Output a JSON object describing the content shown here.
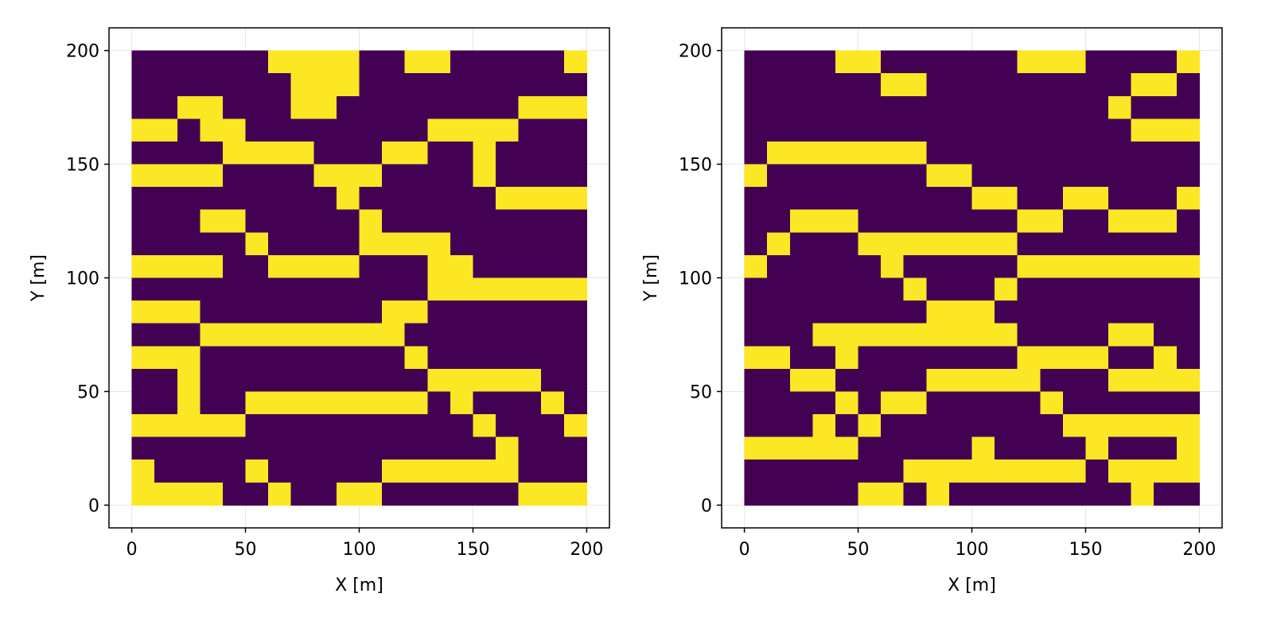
{
  "chart_data": [
    {
      "type": "heatmap",
      "x_label": "X [m]",
      "y_label": "Y [m]",
      "xlim": [
        -10,
        210
      ],
      "ylim": [
        -10,
        210
      ],
      "xticks": [
        0,
        50,
        100,
        150,
        200
      ],
      "yticks": [
        0,
        50,
        100,
        150,
        200
      ],
      "data_extent": [
        0,
        200
      ],
      "grid": true,
      "colors": [
        "#440154",
        "#fde725"
      ],
      "z": [
        [
          0,
          0,
          0,
          0,
          0,
          0,
          1,
          1,
          1,
          1,
          0,
          0,
          1,
          1,
          0,
          0,
          0,
          0,
          0,
          1
        ],
        [
          0,
          0,
          0,
          0,
          0,
          0,
          0,
          1,
          1,
          1,
          0,
          0,
          0,
          0,
          0,
          0,
          0,
          0,
          0,
          0
        ],
        [
          0,
          0,
          1,
          1,
          0,
          0,
          0,
          1,
          1,
          0,
          0,
          0,
          0,
          0,
          0,
          0,
          0,
          1,
          1,
          1
        ],
        [
          1,
          1,
          0,
          1,
          1,
          0,
          0,
          0,
          0,
          0,
          0,
          0,
          0,
          1,
          1,
          1,
          1,
          0,
          0,
          0
        ],
        [
          0,
          0,
          0,
          0,
          1,
          1,
          1,
          1,
          0,
          0,
          0,
          1,
          1,
          0,
          0,
          1,
          0,
          0,
          0,
          0
        ],
        [
          1,
          1,
          1,
          1,
          0,
          0,
          0,
          0,
          1,
          1,
          1,
          0,
          0,
          0,
          0,
          1,
          0,
          0,
          0,
          0
        ],
        [
          0,
          0,
          0,
          0,
          0,
          0,
          0,
          0,
          0,
          1,
          0,
          0,
          0,
          0,
          0,
          0,
          1,
          1,
          1,
          1
        ],
        [
          0,
          0,
          0,
          1,
          1,
          0,
          0,
          0,
          0,
          0,
          1,
          0,
          0,
          0,
          0,
          0,
          0,
          0,
          0,
          0
        ],
        [
          0,
          0,
          0,
          0,
          0,
          1,
          0,
          0,
          0,
          0,
          1,
          1,
          1,
          1,
          0,
          0,
          0,
          0,
          0,
          0
        ],
        [
          1,
          1,
          1,
          1,
          0,
          0,
          1,
          1,
          1,
          1,
          0,
          0,
          0,
          1,
          1,
          0,
          0,
          0,
          0,
          0
        ],
        [
          0,
          0,
          0,
          0,
          0,
          0,
          0,
          0,
          0,
          0,
          0,
          0,
          0,
          1,
          1,
          1,
          1,
          1,
          1,
          1
        ],
        [
          1,
          1,
          1,
          0,
          0,
          0,
          0,
          0,
          0,
          0,
          0,
          1,
          1,
          0,
          0,
          0,
          0,
          0,
          0,
          0
        ],
        [
          0,
          0,
          0,
          1,
          1,
          1,
          1,
          1,
          1,
          1,
          1,
          1,
          0,
          0,
          0,
          0,
          0,
          0,
          0,
          0
        ],
        [
          1,
          1,
          1,
          0,
          0,
          0,
          0,
          0,
          0,
          0,
          0,
          0,
          1,
          0,
          0,
          0,
          0,
          0,
          0,
          0
        ],
        [
          0,
          0,
          1,
          0,
          0,
          0,
          0,
          0,
          0,
          0,
          0,
          0,
          0,
          1,
          1,
          1,
          1,
          1,
          0,
          0
        ],
        [
          0,
          0,
          1,
          0,
          0,
          1,
          1,
          1,
          1,
          1,
          1,
          1,
          1,
          0,
          1,
          0,
          0,
          0,
          1,
          0
        ],
        [
          1,
          1,
          1,
          1,
          1,
          0,
          0,
          0,
          0,
          0,
          0,
          0,
          0,
          0,
          0,
          1,
          0,
          0,
          0,
          1
        ],
        [
          0,
          0,
          0,
          0,
          0,
          0,
          0,
          0,
          0,
          0,
          0,
          0,
          0,
          0,
          0,
          0,
          1,
          0,
          0,
          0
        ],
        [
          1,
          0,
          0,
          0,
          0,
          1,
          0,
          0,
          0,
          0,
          0,
          1,
          1,
          1,
          1,
          1,
          1,
          0,
          0,
          0
        ],
        [
          1,
          1,
          1,
          1,
          0,
          0,
          1,
          0,
          0,
          1,
          1,
          0,
          0,
          0,
          0,
          0,
          0,
          1,
          1,
          1
        ]
      ]
    },
    {
      "type": "heatmap",
      "x_label": "X [m]",
      "y_label": "Y [m]",
      "xlim": [
        -10,
        210
      ],
      "ylim": [
        -10,
        210
      ],
      "xticks": [
        0,
        50,
        100,
        150,
        200
      ],
      "yticks": [
        0,
        50,
        100,
        150,
        200
      ],
      "data_extent": [
        0,
        200
      ],
      "grid": true,
      "colors": [
        "#440154",
        "#fde725"
      ],
      "z": [
        [
          0,
          0,
          0,
          0,
          1,
          1,
          0,
          0,
          0,
          0,
          0,
          0,
          1,
          1,
          1,
          0,
          0,
          0,
          0,
          1
        ],
        [
          0,
          0,
          0,
          0,
          0,
          0,
          1,
          1,
          0,
          0,
          0,
          0,
          0,
          0,
          0,
          0,
          0,
          1,
          1,
          0
        ],
        [
          0,
          0,
          0,
          0,
          0,
          0,
          0,
          0,
          0,
          0,
          0,
          0,
          0,
          0,
          0,
          0,
          1,
          0,
          0,
          0
        ],
        [
          0,
          0,
          0,
          0,
          0,
          0,
          0,
          0,
          0,
          0,
          0,
          0,
          0,
          0,
          0,
          0,
          0,
          1,
          1,
          1
        ],
        [
          0,
          1,
          1,
          1,
          1,
          1,
          1,
          1,
          0,
          0,
          0,
          0,
          0,
          0,
          0,
          0,
          0,
          0,
          0,
          0
        ],
        [
          1,
          0,
          0,
          0,
          0,
          0,
          0,
          0,
          1,
          1,
          0,
          0,
          0,
          0,
          0,
          0,
          0,
          0,
          0,
          0
        ],
        [
          0,
          0,
          0,
          0,
          0,
          0,
          0,
          0,
          0,
          0,
          1,
          1,
          0,
          0,
          1,
          1,
          0,
          0,
          0,
          1
        ],
        [
          0,
          0,
          1,
          1,
          1,
          0,
          0,
          0,
          0,
          0,
          0,
          0,
          1,
          1,
          0,
          0,
          1,
          1,
          1,
          0
        ],
        [
          0,
          1,
          0,
          0,
          0,
          1,
          1,
          1,
          1,
          1,
          1,
          1,
          0,
          0,
          0,
          0,
          0,
          0,
          0,
          0
        ],
        [
          1,
          0,
          0,
          0,
          0,
          0,
          1,
          0,
          0,
          0,
          0,
          0,
          1,
          1,
          1,
          1,
          1,
          1,
          1,
          1
        ],
        [
          0,
          0,
          0,
          0,
          0,
          0,
          0,
          1,
          0,
          0,
          0,
          1,
          0,
          0,
          0,
          0,
          0,
          0,
          0,
          0
        ],
        [
          0,
          0,
          0,
          0,
          0,
          0,
          0,
          0,
          1,
          1,
          1,
          0,
          0,
          0,
          0,
          0,
          0,
          0,
          0,
          0
        ],
        [
          0,
          0,
          0,
          1,
          1,
          1,
          1,
          1,
          1,
          1,
          1,
          1,
          0,
          0,
          0,
          0,
          1,
          1,
          0,
          0
        ],
        [
          1,
          1,
          0,
          0,
          1,
          0,
          0,
          0,
          0,
          0,
          0,
          0,
          1,
          1,
          1,
          1,
          0,
          0,
          1,
          0
        ],
        [
          0,
          0,
          1,
          1,
          0,
          0,
          0,
          0,
          1,
          1,
          1,
          1,
          1,
          0,
          0,
          0,
          1,
          1,
          1,
          1
        ],
        [
          0,
          0,
          0,
          0,
          1,
          0,
          1,
          1,
          0,
          0,
          0,
          0,
          0,
          1,
          0,
          0,
          0,
          0,
          0,
          0
        ],
        [
          0,
          0,
          0,
          1,
          0,
          1,
          0,
          0,
          0,
          0,
          0,
          0,
          0,
          0,
          1,
          1,
          1,
          1,
          1,
          1
        ],
        [
          1,
          1,
          1,
          1,
          1,
          0,
          0,
          0,
          0,
          0,
          1,
          0,
          0,
          0,
          0,
          1,
          0,
          0,
          0,
          1
        ],
        [
          0,
          0,
          0,
          0,
          0,
          0,
          0,
          1,
          1,
          1,
          1,
          1,
          1,
          1,
          1,
          0,
          1,
          1,
          1,
          1
        ],
        [
          0,
          0,
          0,
          0,
          0,
          1,
          1,
          0,
          1,
          0,
          0,
          0,
          0,
          0,
          0,
          0,
          0,
          1,
          0,
          0
        ]
      ]
    }
  ]
}
